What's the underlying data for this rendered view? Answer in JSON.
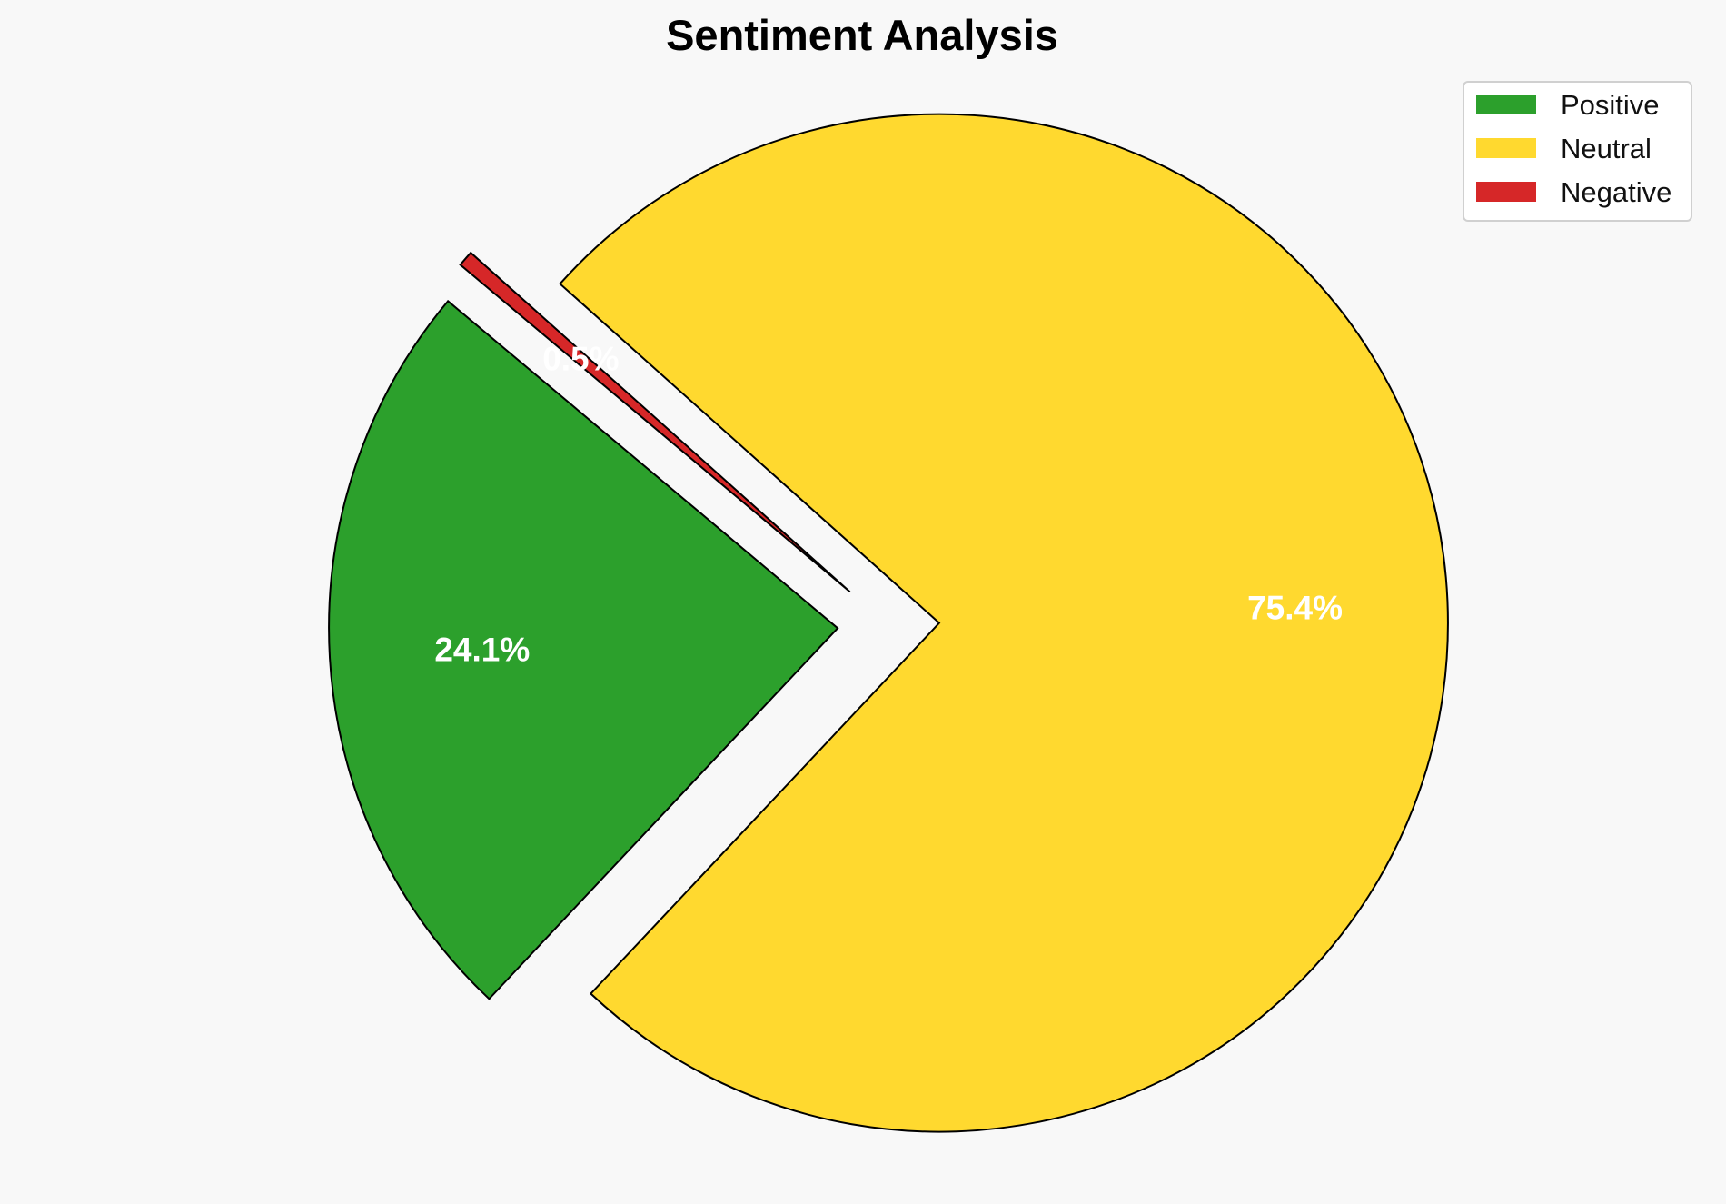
{
  "chart_data": {
    "type": "pie",
    "title": "Sentiment Analysis",
    "start_angle_deg": 140,
    "direction": "counterclockwise",
    "exploded": true,
    "legend_position": "top-right",
    "slices": [
      {
        "name": "Positive",
        "value": 24.1,
        "label": "24.1%",
        "color": "#2ca02c"
      },
      {
        "name": "Neutral",
        "value": 75.4,
        "label": "75.4%",
        "color": "#ffd92f"
      },
      {
        "name": "Negative",
        "value": 0.5,
        "label": "0.5%",
        "color": "#d62728"
      }
    ]
  }
}
